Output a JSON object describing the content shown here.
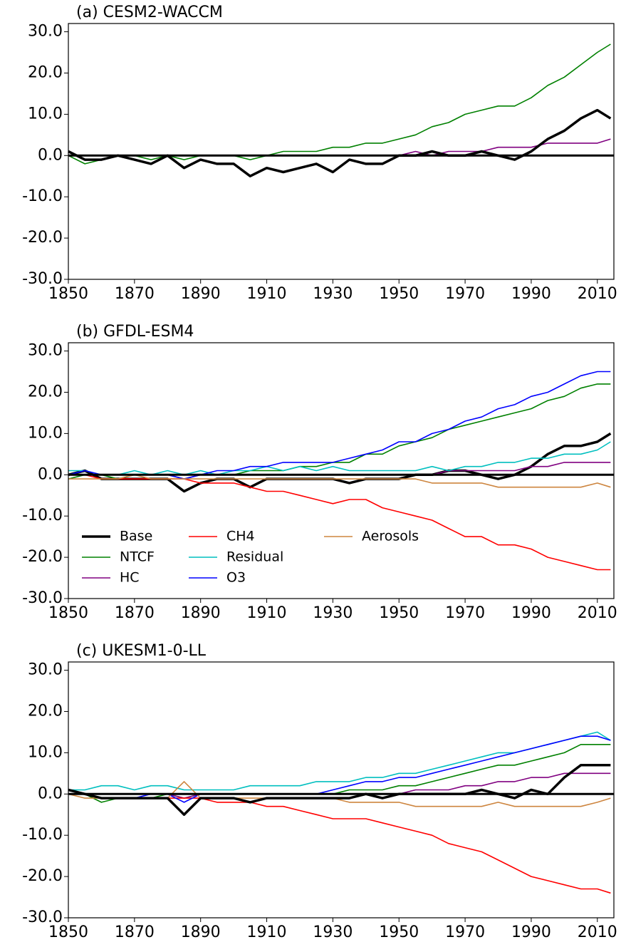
{
  "chart_data": [
    {
      "type": "line",
      "title": "(a) CESM2-WACCM",
      "x": [
        1850,
        1855,
        1860,
        1865,
        1870,
        1875,
        1880,
        1885,
        1890,
        1895,
        1900,
        1905,
        1910,
        1915,
        1920,
        1925,
        1930,
        1935,
        1940,
        1945,
        1950,
        1955,
        1960,
        1965,
        1970,
        1975,
        1980,
        1985,
        1990,
        1995,
        2000,
        2005,
        2010,
        2014
      ],
      "series": [
        {
          "color": "#008000",
          "values": [
            0,
            -2,
            -1,
            0,
            0,
            -1,
            0,
            -1,
            0,
            0,
            0,
            -1,
            0,
            1,
            1,
            1,
            2,
            2,
            3,
            3,
            4,
            5,
            7,
            8,
            10,
            11,
            12,
            12,
            14,
            17,
            19,
            22,
            25,
            27
          ]
        },
        {
          "color": "#800080",
          "values": [
            1,
            -1,
            -1,
            0,
            -1,
            -2,
            0,
            -3,
            -1,
            -2,
            -2,
            -5,
            -3,
            -4,
            -3,
            -2,
            -4,
            -1,
            -2,
            -2,
            0,
            1,
            0,
            1,
            1,
            1,
            2,
            2,
            2,
            3,
            3,
            3,
            3,
            4
          ]
        },
        {
          "color": "#000000",
          "values": [
            1,
            -1,
            -1,
            0,
            -1,
            -2,
            0,
            -3,
            -1,
            -2,
            -2,
            -5,
            -3,
            -4,
            -3,
            -2,
            -4,
            -1,
            -2,
            -2,
            0,
            0,
            1,
            0,
            0,
            1,
            0,
            -1,
            1,
            4,
            6,
            9,
            11,
            9
          ]
        }
      ],
      "xlim": [
        1850,
        2015
      ],
      "ylim": [
        -30,
        32
      ],
      "hline": 0,
      "xticks": [
        1850,
        1870,
        1890,
        1910,
        1930,
        1950,
        1970,
        1990,
        2010
      ],
      "yticks": [
        {
          "value": -30,
          "label": "-30.0"
        },
        {
          "value": -20,
          "label": "-20.0"
        },
        {
          "value": -10,
          "label": "-10.0"
        },
        {
          "value": 0,
          "label": "0.0"
        },
        {
          "value": 10,
          "label": "10.0"
        },
        {
          "value": 20,
          "label": "20.0"
        },
        {
          "value": 30,
          "label": "30.0"
        }
      ]
    },
    {
      "type": "line",
      "title": "(b) GFDL-ESM4",
      "x": [
        1850,
        1855,
        1860,
        1865,
        1870,
        1875,
        1880,
        1885,
        1890,
        1895,
        1900,
        1905,
        1910,
        1915,
        1920,
        1925,
        1930,
        1935,
        1940,
        1945,
        1950,
        1955,
        1960,
        1965,
        1970,
        1975,
        1980,
        1985,
        1990,
        1995,
        2000,
        2005,
        2010,
        2014
      ],
      "series": [
        {
          "name": "Base",
          "color": "#000000",
          "values": [
            0,
            1,
            -1,
            -1,
            -1,
            -1,
            -1,
            -4,
            -2,
            -1,
            -1,
            -3,
            -1,
            -1,
            -1,
            -1,
            -1,
            -2,
            -1,
            -1,
            -1,
            0,
            0,
            1,
            1,
            0,
            -1,
            0,
            2,
            5,
            7,
            7,
            8,
            10
          ]
        },
        {
          "name": "NTCF",
          "color": "#008000",
          "values": [
            -1,
            0,
            0,
            -1,
            0,
            0,
            0,
            -1,
            0,
            0,
            0,
            1,
            1,
            1,
            2,
            2,
            3,
            3,
            5,
            5,
            7,
            8,
            9,
            11,
            12,
            13,
            14,
            15,
            16,
            18,
            19,
            21,
            22,
            22
          ]
        },
        {
          "name": "HC",
          "color": "#800080",
          "values": [
            0,
            0,
            0,
            0,
            0,
            0,
            0,
            -1,
            0,
            0,
            0,
            0,
            0,
            0,
            0,
            0,
            0,
            0,
            0,
            0,
            0,
            0,
            0,
            1,
            1,
            1,
            1,
            1,
            2,
            2,
            3,
            3,
            3,
            3
          ]
        },
        {
          "name": "CH4",
          "color": "#ff0000",
          "values": [
            0,
            0,
            -1,
            -1,
            -1,
            -1,
            -1,
            -1,
            -2,
            -2,
            -2,
            -3,
            -4,
            -4,
            -5,
            -6,
            -7,
            -6,
            -6,
            -8,
            -9,
            -10,
            -11,
            -13,
            -15,
            -15,
            -17,
            -17,
            -18,
            -20,
            -21,
            -22,
            -23,
            -23
          ]
        },
        {
          "name": "Residual",
          "color": "#00bfbf",
          "values": [
            1,
            1,
            0,
            0,
            1,
            0,
            1,
            0,
            1,
            0,
            1,
            1,
            2,
            1,
            2,
            1,
            2,
            1,
            1,
            1,
            1,
            1,
            2,
            1,
            2,
            2,
            3,
            3,
            4,
            4,
            5,
            5,
            6,
            8
          ]
        },
        {
          "name": "O3",
          "color": "#0000ff",
          "values": [
            0,
            1,
            0,
            0,
            0,
            0,
            0,
            -1,
            0,
            1,
            1,
            2,
            2,
            3,
            3,
            3,
            3,
            4,
            5,
            6,
            8,
            8,
            10,
            11,
            13,
            14,
            16,
            17,
            19,
            20,
            22,
            24,
            25,
            25
          ]
        },
        {
          "name": "Aerosols",
          "color": "#cd853f",
          "values": [
            -1,
            -1,
            -1,
            -1,
            0,
            -1,
            -1,
            -1,
            -1,
            -1,
            -1,
            -1,
            -1,
            -1,
            -1,
            -1,
            -1,
            -1,
            -1,
            -1,
            -1,
            -1,
            -2,
            -2,
            -2,
            -2,
            -3,
            -3,
            -3,
            -3,
            -3,
            -3,
            -2,
            -3
          ]
        }
      ],
      "legend": "lower left",
      "xlim": [
        1850,
        2015
      ],
      "ylim": [
        -30,
        32
      ],
      "hline": 0,
      "xticks": [
        1850,
        1870,
        1890,
        1910,
        1930,
        1950,
        1970,
        1990,
        2010
      ],
      "yticks": [
        {
          "value": -30,
          "label": "-30.0"
        },
        {
          "value": -20,
          "label": "-20.0"
        },
        {
          "value": -10,
          "label": "-10.0"
        },
        {
          "value": 0,
          "label": "0.0"
        },
        {
          "value": 10,
          "label": "10.0"
        },
        {
          "value": 20,
          "label": "20.0"
        },
        {
          "value": 30,
          "label": "30.0"
        }
      ]
    },
    {
      "type": "line",
      "title": "(c) UKESM1-0-LL",
      "x": [
        1850,
        1855,
        1860,
        1865,
        1870,
        1875,
        1880,
        1885,
        1890,
        1895,
        1900,
        1905,
        1910,
        1915,
        1920,
        1925,
        1930,
        1935,
        1940,
        1945,
        1950,
        1955,
        1960,
        1965,
        1970,
        1975,
        1980,
        1985,
        1990,
        1995,
        2000,
        2005,
        2010,
        2014
      ],
      "series": [
        {
          "color": "#008000",
          "values": [
            0,
            0,
            -2,
            -1,
            -1,
            -1,
            0,
            -1,
            0,
            0,
            0,
            0,
            0,
            0,
            0,
            0,
            0,
            1,
            1,
            1,
            2,
            2,
            3,
            4,
            5,
            6,
            7,
            7,
            8,
            9,
            10,
            12,
            12,
            12
          ]
        },
        {
          "color": "#800080",
          "values": [
            0,
            0,
            0,
            0,
            0,
            0,
            0,
            -1,
            0,
            0,
            0,
            0,
            0,
            0,
            0,
            0,
            0,
            0,
            0,
            0,
            0,
            1,
            1,
            1,
            2,
            2,
            3,
            3,
            4,
            4,
            5,
            5,
            5,
            5
          ]
        },
        {
          "color": "#ff0000",
          "values": [
            0,
            0,
            -1,
            -1,
            -1,
            -1,
            -1,
            -1,
            -1,
            -2,
            -2,
            -2,
            -3,
            -3,
            -4,
            -5,
            -6,
            -6,
            -6,
            -7,
            -8,
            -9,
            -10,
            -12,
            -13,
            -14,
            -16,
            -18,
            -20,
            -21,
            -22,
            -23,
            -23,
            -24
          ]
        },
        {
          "color": "#00bfbf",
          "values": [
            1,
            1,
            2,
            2,
            1,
            2,
            2,
            1,
            1,
            1,
            1,
            2,
            2,
            2,
            2,
            3,
            3,
            3,
            4,
            4,
            5,
            5,
            6,
            7,
            8,
            9,
            10,
            10,
            11,
            12,
            13,
            14,
            15,
            13
          ]
        },
        {
          "color": "#0000ff",
          "values": [
            0,
            0,
            -1,
            -1,
            -1,
            0,
            0,
            -2,
            0,
            0,
            0,
            0,
            0,
            0,
            0,
            0,
            1,
            2,
            3,
            3,
            4,
            4,
            5,
            6,
            7,
            8,
            9,
            10,
            11,
            12,
            13,
            14,
            14,
            13
          ]
        },
        {
          "color": "#cd853f",
          "values": [
            0,
            -1,
            -1,
            -1,
            -1,
            -1,
            -1,
            3,
            -1,
            -1,
            -1,
            -1,
            -1,
            -1,
            -1,
            -1,
            -1,
            -2,
            -2,
            -2,
            -2,
            -3,
            -3,
            -3,
            -3,
            -3,
            -2,
            -3,
            -3,
            -3,
            -3,
            -3,
            -2,
            -1
          ]
        },
        {
          "color": "#000000",
          "values": [
            1,
            0,
            -1,
            -1,
            -1,
            -1,
            -1,
            -5,
            -1,
            -1,
            -1,
            -2,
            -1,
            -1,
            -1,
            -1,
            -1,
            -1,
            0,
            -1,
            0,
            0,
            0,
            0,
            0,
            1,
            0,
            -1,
            1,
            0,
            4,
            7,
            7,
            7
          ]
        }
      ],
      "xlim": [
        1850,
        2015
      ],
      "ylim": [
        -30,
        32
      ],
      "hline": 0,
      "xticks": [
        1850,
        1870,
        1890,
        1910,
        1930,
        1950,
        1970,
        1990,
        2010
      ],
      "yticks": [
        {
          "value": -30,
          "label": "-30.0"
        },
        {
          "value": -20,
          "label": "-20.0"
        },
        {
          "value": -10,
          "label": "-10.0"
        },
        {
          "value": 0,
          "label": "0.0"
        },
        {
          "value": 10,
          "label": "10.0"
        },
        {
          "value": 20,
          "label": "20.0"
        },
        {
          "value": 30,
          "label": "30.0"
        }
      ]
    }
  ]
}
